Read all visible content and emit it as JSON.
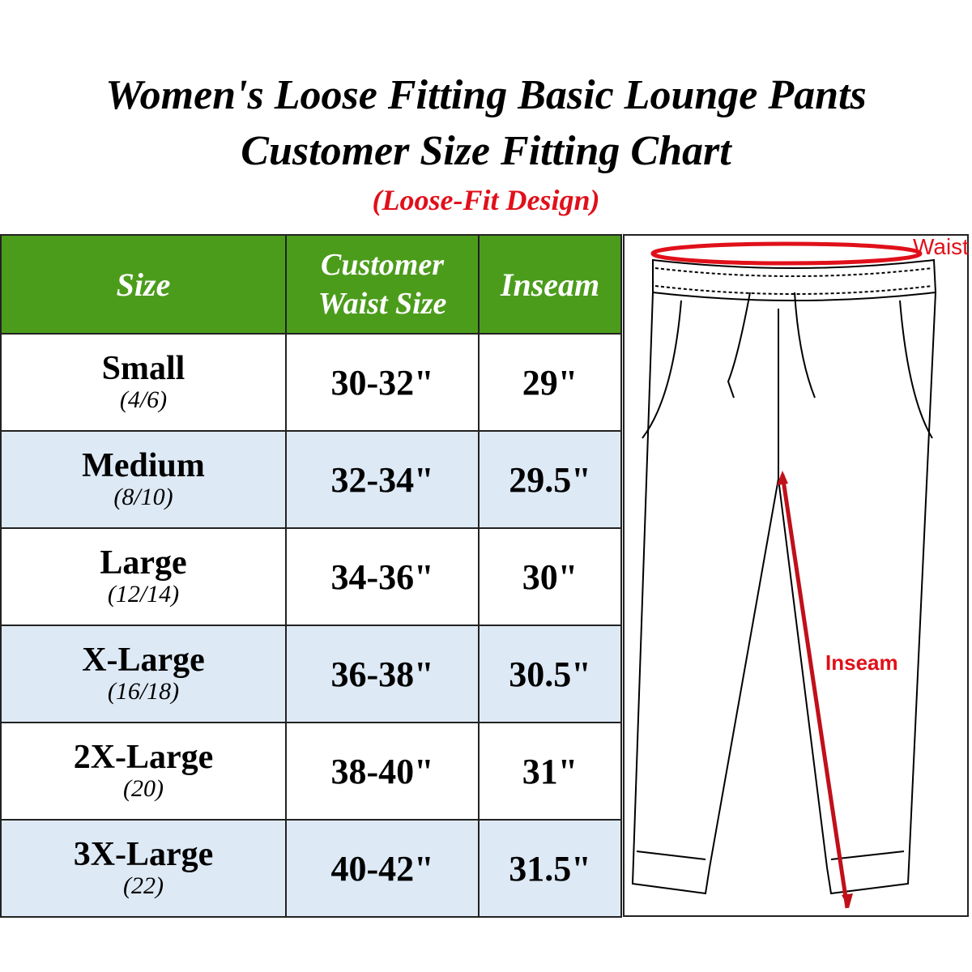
{
  "title_line1": "Women's Loose Fitting Basic Lounge Pants",
  "title_line2": "Customer Size Fitting Chart",
  "subtitle": "(Loose-Fit Design)",
  "headers": {
    "size": "Size",
    "waist": "Customer Waist Size",
    "inseam": "Inseam"
  },
  "rows": [
    {
      "size": "Small",
      "numeric": "(4/6)",
      "waist": "30-32\"",
      "inseam": "29\""
    },
    {
      "size": "Medium",
      "numeric": "(8/10)",
      "waist": "32-34\"",
      "inseam": "29.5\""
    },
    {
      "size": "Large",
      "numeric": "(12/14)",
      "waist": "34-36\"",
      "inseam": "30\""
    },
    {
      "size": "X-Large",
      "numeric": "(16/18)",
      "waist": "36-38\"",
      "inseam": "30.5\""
    },
    {
      "size": "2X-Large",
      "numeric": "(20)",
      "waist": "38-40\"",
      "inseam": "31\""
    },
    {
      "size": "3X-Large",
      "numeric": "(22)",
      "waist": "40-42\"",
      "inseam": "31.5\""
    }
  ],
  "diagram": {
    "waist_label": "Waist",
    "inseam_label": "Inseam"
  },
  "colors": {
    "header_green": "#4c9c1c",
    "row_alt": "#dde9f5",
    "accent_red": "#e0101a"
  }
}
